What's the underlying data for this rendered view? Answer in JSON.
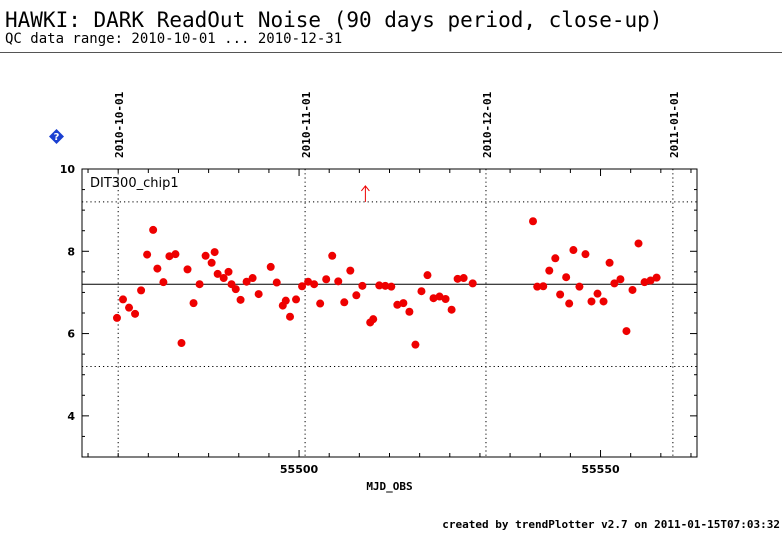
{
  "header": {
    "title": "HAWKI: DARK ReadOut Noise (90 days period, close-up)",
    "subtitle": "QC data range: 2010-10-01 ... 2010-12-31"
  },
  "help_icon": {
    "name": "help-icon",
    "color": "#1a3fd1"
  },
  "footer": {
    "text": "created by trendPlotter v2.7 on 2011-01-15T07:03:32"
  },
  "chart_data": {
    "type": "scatter",
    "panel_label": "DIT300_chip1",
    "xlabel": "MJD_OBS",
    "ylabel": "",
    "xlim": [
      55464,
      55566
    ],
    "ylim": [
      3,
      10
    ],
    "x_ticks": [
      55500,
      55550
    ],
    "y_ticks": [
      4,
      6,
      8,
      10
    ],
    "grid": false,
    "reference_lines": {
      "mean": 7.2,
      "upper": 9.2,
      "lower": 5.2
    },
    "date_markers": [
      {
        "label": "2010-10-01",
        "x": 55470
      },
      {
        "label": "2010-11-01",
        "x": 55501
      },
      {
        "label": "2010-12-01",
        "x": 55531
      },
      {
        "label": "2011-01-01",
        "x": 55562
      }
    ],
    "outlier_arrow": {
      "x": 55511,
      "y": 9.2
    },
    "series": [
      {
        "color": "#ee0000",
        "points": [
          [
            55469.8,
            6.38
          ],
          [
            55470.8,
            6.83
          ],
          [
            55471.8,
            6.63
          ],
          [
            55472.8,
            6.48
          ],
          [
            55473.8,
            7.05
          ],
          [
            55474.8,
            7.92
          ],
          [
            55475.8,
            8.52
          ],
          [
            55476.5,
            7.58
          ],
          [
            55477.5,
            7.25
          ],
          [
            55478.5,
            7.88
          ],
          [
            55479.5,
            7.93
          ],
          [
            55480.5,
            5.77
          ],
          [
            55481.5,
            7.56
          ],
          [
            55482.5,
            6.74
          ],
          [
            55483.5,
            7.2
          ],
          [
            55484.5,
            7.89
          ],
          [
            55485.5,
            7.72
          ],
          [
            55486.0,
            7.98
          ],
          [
            55486.5,
            7.45
          ],
          [
            55487.5,
            7.35
          ],
          [
            55488.3,
            7.5
          ],
          [
            55488.8,
            7.2
          ],
          [
            55489.5,
            7.08
          ],
          [
            55490.3,
            6.82
          ],
          [
            55491.3,
            7.26
          ],
          [
            55492.3,
            7.35
          ],
          [
            55493.3,
            6.96
          ],
          [
            55495.3,
            7.62
          ],
          [
            55496.3,
            7.24
          ],
          [
            55497.3,
            6.68
          ],
          [
            55497.8,
            6.8
          ],
          [
            55498.5,
            6.41
          ],
          [
            55499.5,
            6.83
          ],
          [
            55500.5,
            7.15
          ],
          [
            55501.5,
            7.26
          ],
          [
            55502.5,
            7.2
          ],
          [
            55503.5,
            6.73
          ],
          [
            55504.5,
            7.32
          ],
          [
            55505.5,
            7.89
          ],
          [
            55506.5,
            7.27
          ],
          [
            55507.5,
            6.76
          ],
          [
            55508.5,
            7.53
          ],
          [
            55509.5,
            6.93
          ],
          [
            55510.5,
            7.16
          ],
          [
            55511.8,
            6.27
          ],
          [
            55512.3,
            6.35
          ],
          [
            55513.3,
            7.17
          ],
          [
            55514.3,
            7.16
          ],
          [
            55515.3,
            7.14
          ],
          [
            55516.3,
            6.7
          ],
          [
            55517.3,
            6.74
          ],
          [
            55518.3,
            6.53
          ],
          [
            55519.3,
            5.73
          ],
          [
            55520.3,
            7.03
          ],
          [
            55521.3,
            7.42
          ],
          [
            55522.3,
            6.86
          ],
          [
            55523.3,
            6.9
          ],
          [
            55524.3,
            6.84
          ],
          [
            55525.3,
            6.58
          ],
          [
            55526.3,
            7.33
          ],
          [
            55527.3,
            7.35
          ],
          [
            55528.8,
            7.22
          ],
          [
            55538.8,
            8.73
          ],
          [
            55539.5,
            7.14
          ],
          [
            55540.5,
            7.15
          ],
          [
            55541.5,
            7.53
          ],
          [
            55542.5,
            7.83
          ],
          [
            55543.3,
            6.95
          ],
          [
            55544.3,
            7.37
          ],
          [
            55544.8,
            6.73
          ],
          [
            55545.5,
            8.03
          ],
          [
            55546.5,
            7.14
          ],
          [
            55547.5,
            7.93
          ],
          [
            55548.5,
            6.78
          ],
          [
            55549.5,
            6.97
          ],
          [
            55550.5,
            6.78
          ],
          [
            55551.5,
            7.72
          ],
          [
            55552.3,
            7.22
          ],
          [
            55553.3,
            7.32
          ],
          [
            55554.3,
            6.06
          ],
          [
            55555.3,
            7.06
          ],
          [
            55556.3,
            8.19
          ],
          [
            55557.3,
            7.25
          ],
          [
            55558.3,
            7.29
          ],
          [
            55559.3,
            7.36
          ]
        ]
      }
    ]
  }
}
